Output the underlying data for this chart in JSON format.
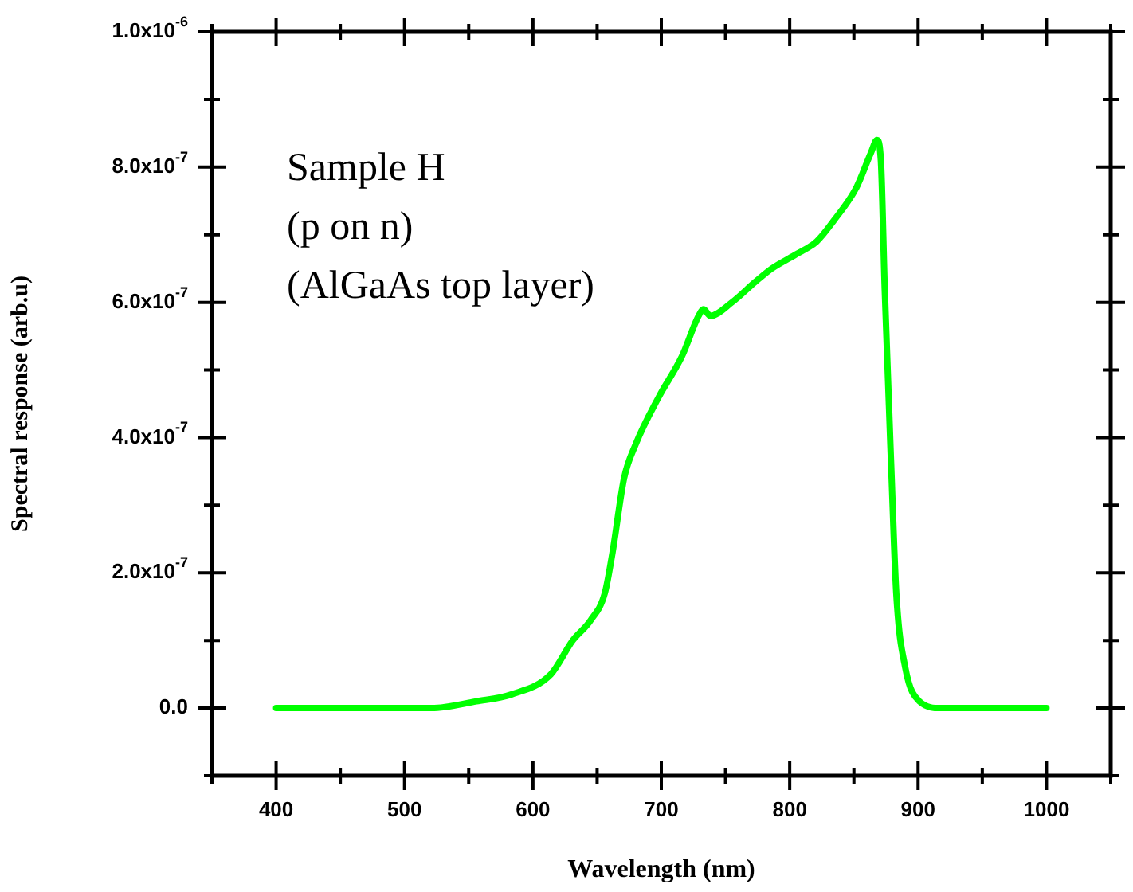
{
  "chart_data": {
    "type": "line",
    "xlabel": "Wavelength (nm)",
    "ylabel": "Spectral response (arb.u)",
    "annotations": [
      "Sample H",
      "(p on n)",
      "(AlGaAs top layer)"
    ],
    "series": [
      {
        "color": "#00ff00",
        "x": [
          400,
          521,
          556,
          583,
          614,
          631,
          645,
          656,
          662,
          671,
          680,
          698,
          716,
          729,
          733,
          738,
          755,
          773,
          786,
          804,
          821,
          834,
          852,
          863,
          868,
          871,
          874,
          879,
          883,
          890,
          901,
          918,
          1000
        ],
        "values": [
          0,
          0,
          1e-08,
          2e-08,
          5e-08,
          1e-07,
          1.3e-07,
          1.7e-07,
          2.3e-07,
          3.4e-07,
          3.9e-07,
          4.6e-07,
          5.2e-07,
          5.8e-07,
          5.9e-07,
          5.8e-07,
          6e-07,
          6.3e-07,
          6.5e-07,
          6.7e-07,
          6.9e-07,
          7.2e-07,
          7.7e-07,
          8.2e-07,
          8.4e-07,
          8.1e-07,
          6.2e-07,
          3.6e-07,
          1.7e-07,
          6e-08,
          1e-08,
          0,
          0
        ]
      }
    ],
    "xlim": [
      350,
      1050
    ],
    "xticks": [
      {
        "value": 350,
        "label": null
      },
      400,
      {
        "value": 450,
        "label": null
      },
      500,
      {
        "value": 550,
        "label": null
      },
      600,
      {
        "value": 650,
        "label": null
      },
      700,
      {
        "value": 750,
        "label": null
      },
      800,
      {
        "value": 850,
        "label": null
      },
      900,
      {
        "value": 950,
        "label": null
      },
      1000,
      {
        "value": 1050,
        "label": null
      }
    ],
    "ylim": [
      -1e-07,
      1e-06
    ],
    "yticks": [
      {
        "value": -1e-07,
        "label": null
      },
      {
        "value": 0,
        "label": "0.0"
      },
      {
        "value": 1e-07,
        "label": null
      },
      {
        "value": 2e-07,
        "label": "2.0x10$^{-7}$"
      },
      {
        "value": 3e-07,
        "label": null
      },
      {
        "value": 4e-07,
        "label": "4.0x10$^{-7}$"
      },
      {
        "value": 5e-07,
        "label": null
      },
      {
        "value": 6e-07,
        "label": "6.0x10$^{-7}$"
      },
      {
        "value": 7e-07,
        "label": null
      },
      {
        "value": 8e-07,
        "label": "8.0x10$^{-7}$"
      },
      {
        "value": 9e-07,
        "label": null
      },
      {
        "value": 1e-06,
        "label": "1.0x10$^{-6}$"
      }
    ],
    "grid": false,
    "legend": false,
    "marker": "none",
    "line_style": "solid"
  }
}
